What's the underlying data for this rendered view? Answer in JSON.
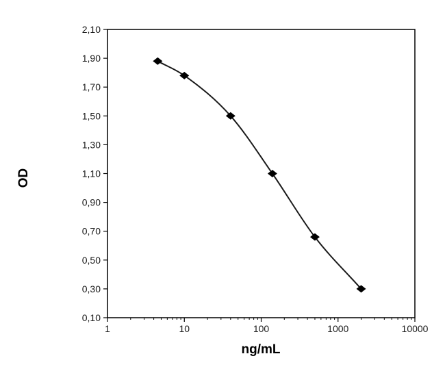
{
  "chart_data": {
    "type": "scatter",
    "title": "",
    "xlabel": "ng/mL",
    "ylabel": "OD",
    "x_scale": "log",
    "xlim": [
      1,
      10000
    ],
    "ylim": [
      0.1,
      2.1
    ],
    "x_ticks": [
      1,
      10,
      100,
      1000,
      10000
    ],
    "x_tick_labels": [
      "1",
      "10",
      "100",
      "1000",
      "10000"
    ],
    "y_ticks": [
      0.1,
      0.3,
      0.5,
      0.7,
      0.9,
      1.1,
      1.3,
      1.5,
      1.7,
      1.9,
      2.1
    ],
    "y_tick_labels": [
      "0,10",
      "0,30",
      "0,50",
      "0,70",
      "0,90",
      "1,10",
      "1,30",
      "1,50",
      "1,70",
      "1,90",
      "2,10"
    ],
    "grid": false,
    "legend": "none",
    "marker": "diamond",
    "fitted_curve": true,
    "series": [
      {
        "x": [
          4.5,
          10,
          40,
          140,
          500,
          2000
        ],
        "y": [
          1.88,
          1.78,
          1.5,
          1.1,
          0.66,
          0.3
        ]
      }
    ],
    "colors": {
      "line": "#1a1a1a",
      "marker": "#000000",
      "axis": "#000000"
    }
  }
}
